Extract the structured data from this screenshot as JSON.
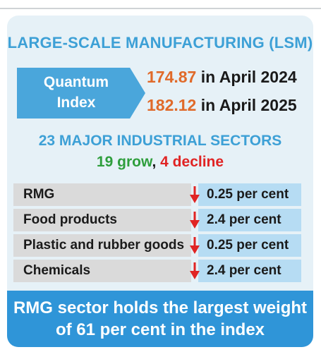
{
  "title": "LARGE-SCALE MANUFACTURING (LSM)",
  "quantum_index": {
    "label_line1": "Quantum",
    "label_line2": "Index",
    "entries": [
      {
        "value": "174.87",
        "text": " in April 2024"
      },
      {
        "value": "182.12",
        "text": " in April 2025"
      }
    ]
  },
  "sectors": {
    "heading": "23 MAJOR INDUSTRIAL SECTORS",
    "grow_text": "19 grow",
    "separator": ", ",
    "decline_text": "4 decline"
  },
  "table": {
    "rows": [
      {
        "name": "RMG",
        "value": "0.25 per cent",
        "direction": "down"
      },
      {
        "name": "Food products",
        "value": "2.4  per cent",
        "direction": "down"
      },
      {
        "name": "Plastic and rubber goods",
        "value": "0.25 per cent",
        "direction": "down"
      },
      {
        "name": "Chemicals",
        "value": "2.4  per cent",
        "direction": "down"
      }
    ]
  },
  "footer": {
    "line1": "RMG sector holds the largest weight",
    "line2": "of 61 per cent in the index"
  },
  "colors": {
    "accent_blue": "#3da0d6",
    "orange": "#e06a2a",
    "green": "#2e9e3c",
    "red": "#e02424",
    "footer_blue": "#2f95d8"
  },
  "icons": {
    "decline_arrow": "arrow-down-icon"
  }
}
